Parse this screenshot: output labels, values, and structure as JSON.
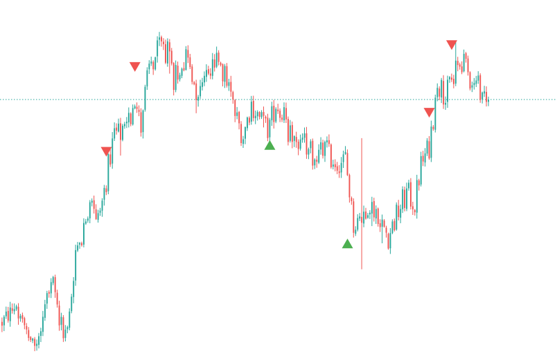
{
  "chart_data": {
    "type": "candlestick",
    "title": "",
    "xlabel": "",
    "ylabel": "",
    "grid": false,
    "ylim": [
      0,
      100
    ],
    "colors": {
      "up": "#26a69a",
      "down": "#ef5350",
      "marker_buy": "#4caf50",
      "marker_sell": "#ef5350",
      "price_line": "#26a69a"
    },
    "price_line": 72.2,
    "waypoints": [
      [
        0,
        10.0,
        5
      ],
      [
        6,
        14.0,
        5
      ],
      [
        12,
        7.0,
        5
      ],
      [
        17,
        3.0,
        5
      ],
      [
        22,
        17.0,
        6
      ],
      [
        25,
        20.0,
        6
      ],
      [
        28,
        10.0,
        5
      ],
      [
        32,
        6.0,
        5
      ],
      [
        36,
        30.0,
        7
      ],
      [
        41,
        38.0,
        6
      ],
      [
        44,
        42.0,
        6
      ],
      [
        48,
        40.0,
        6
      ],
      [
        51,
        50.0,
        8
      ],
      [
        55,
        63.0,
        7
      ],
      [
        60,
        62.0,
        7
      ],
      [
        64,
        70.0,
        8
      ],
      [
        68,
        66.0,
        8
      ],
      [
        72,
        81.0,
        7
      ],
      [
        77,
        88.0,
        7
      ],
      [
        81,
        85.0,
        7
      ],
      [
        84,
        78.0,
        7
      ],
      [
        87,
        82.0,
        7
      ],
      [
        91,
        86.0,
        7
      ],
      [
        95,
        75.0,
        7
      ],
      [
        100,
        80.0,
        7
      ],
      [
        105,
        82.0,
        7
      ],
      [
        110,
        78.0,
        7
      ],
      [
        114,
        68.0,
        7
      ],
      [
        118,
        62.0,
        7
      ],
      [
        122,
        71.0,
        7
      ],
      [
        126,
        67.0,
        7
      ],
      [
        130,
        64.0,
        7
      ],
      [
        134,
        71.0,
        7
      ],
      [
        138,
        67.0,
        7
      ],
      [
        143,
        59.0,
        7
      ],
      [
        148,
        60.0,
        7
      ],
      [
        153,
        56.0,
        7
      ],
      [
        158,
        58.0,
        7
      ],
      [
        164,
        54.0,
        6
      ],
      [
        168,
        56.0,
        6
      ],
      [
        172,
        37.0,
        6
      ],
      [
        176,
        39.0,
        6
      ],
      [
        180,
        44.0,
        7
      ],
      [
        184,
        40.0,
        7
      ],
      [
        189,
        34.0,
        7
      ],
      [
        194,
        41.0,
        8
      ],
      [
        198,
        46.0,
        8
      ],
      [
        202,
        43.0,
        7
      ],
      [
        205,
        54.0,
        7
      ],
      [
        209,
        59.0,
        7
      ],
      [
        213,
        77.0,
        7
      ],
      [
        217,
        73.0,
        7
      ],
      [
        221,
        79.0,
        7
      ],
      [
        225,
        83.0,
        7
      ],
      [
        229,
        78.0,
        7
      ],
      [
        233,
        76.0,
        7
      ],
      [
        238,
        72.0,
        7
      ]
    ],
    "spikes": [
      [
        58,
        1.5
      ],
      [
        82,
        2.5
      ],
      [
        95,
        1.0
      ],
      [
        128,
        1.0
      ],
      [
        176,
        13.0
      ],
      [
        181,
        1.5
      ],
      [
        186,
        1.5
      ],
      [
        222,
        2.0
      ]
    ],
    "markers": [
      {
        "type": "sell",
        "index": 51,
        "price": 57.6
      },
      {
        "type": "sell",
        "index": 65,
        "price": 81.3
      },
      {
        "type": "buy",
        "index": 131,
        "price": 59.5
      },
      {
        "type": "buy",
        "index": 169,
        "price": 32.0
      },
      {
        "type": "sell",
        "index": 209,
        "price": 68.5
      },
      {
        "type": "sell",
        "index": 220,
        "price": 87.4
      }
    ],
    "candle_count": 239
  }
}
